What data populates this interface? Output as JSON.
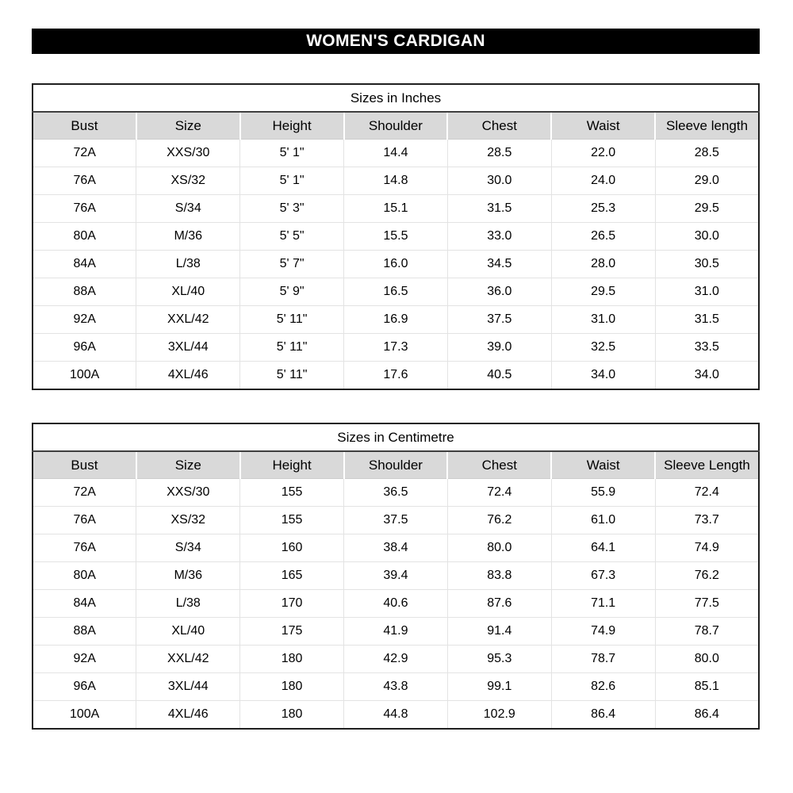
{
  "title": "WOMEN'S CARDIGAN",
  "colors": {
    "title_bar_bg": "#000000",
    "title_bar_text": "#ffffff",
    "header_row_bg": "#d9d9d9",
    "outer_border": "#1f1f1f",
    "grid_line": "#e3e3e3"
  },
  "tables": [
    {
      "caption": "Sizes in Inches",
      "columns": [
        "Bust",
        "Size",
        "Height",
        "Shoulder",
        "Chest",
        "Waist",
        "Sleeve length"
      ],
      "rows": [
        [
          "72A",
          "XXS/30",
          "5' 1\"",
          "14.4",
          "28.5",
          "22.0",
          "28.5"
        ],
        [
          "76A",
          "XS/32",
          "5' 1\"",
          "14.8",
          "30.0",
          "24.0",
          "29.0"
        ],
        [
          "76A",
          "S/34",
          "5' 3\"",
          "15.1",
          "31.5",
          "25.3",
          "29.5"
        ],
        [
          "80A",
          "M/36",
          "5' 5\"",
          "15.5",
          "33.0",
          "26.5",
          "30.0"
        ],
        [
          "84A",
          "L/38",
          "5' 7\"",
          "16.0",
          "34.5",
          "28.0",
          "30.5"
        ],
        [
          "88A",
          "XL/40",
          "5' 9\"",
          "16.5",
          "36.0",
          "29.5",
          "31.0"
        ],
        [
          "92A",
          "XXL/42",
          "5' 11\"",
          "16.9",
          "37.5",
          "31.0",
          "31.5"
        ],
        [
          "96A",
          "3XL/44",
          "5' 11\"",
          "17.3",
          "39.0",
          "32.5",
          "33.5"
        ],
        [
          "100A",
          "4XL/46",
          "5' 11\"",
          "17.6",
          "40.5",
          "34.0",
          "34.0"
        ]
      ]
    },
    {
      "caption": "Sizes in Centimetre",
      "columns": [
        "Bust",
        "Size",
        "Height",
        "Shoulder",
        "Chest",
        "Waist",
        "Sleeve Length"
      ],
      "rows": [
        [
          "72A",
          "XXS/30",
          "155",
          "36.5",
          "72.4",
          "55.9",
          "72.4"
        ],
        [
          "76A",
          "XS/32",
          "155",
          "37.5",
          "76.2",
          "61.0",
          "73.7"
        ],
        [
          "76A",
          "S/34",
          "160",
          "38.4",
          "80.0",
          "64.1",
          "74.9"
        ],
        [
          "80A",
          "M/36",
          "165",
          "39.4",
          "83.8",
          "67.3",
          "76.2"
        ],
        [
          "84A",
          "L/38",
          "170",
          "40.6",
          "87.6",
          "71.1",
          "77.5"
        ],
        [
          "88A",
          "XL/40",
          "175",
          "41.9",
          "91.4",
          "74.9",
          "78.7"
        ],
        [
          "92A",
          "XXL/42",
          "180",
          "42.9",
          "95.3",
          "78.7",
          "80.0"
        ],
        [
          "96A",
          "3XL/44",
          "180",
          "43.8",
          "99.1",
          "82.6",
          "85.1"
        ],
        [
          "100A",
          "4XL/46",
          "180",
          "44.8",
          "102.9",
          "86.4",
          "86.4"
        ]
      ]
    }
  ]
}
